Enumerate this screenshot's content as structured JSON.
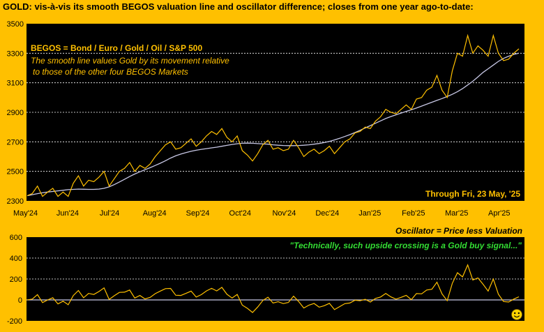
{
  "title": "GOLD:  vis-à-vis its smooth BEGOS valuation line and oscillator difference; closes from one year ago-to-date:",
  "legend": {
    "title": "BEGOS = Bond / Euro / Gold / Oil / S&P 500",
    "line1": "The smooth line values Gold by its movement relative",
    "line2": "to those of the other four BEGOS Markets"
  },
  "through_label": "Through Fri, 23 May, '25",
  "oscillator_label": "Oscillator = Price less Valuation",
  "quote": "\"Technically, such upside crossing is a Gold buy signal...\"",
  "colors": {
    "background": "#FFC000",
    "plot_background": "#000000",
    "price_line": "#FFC000",
    "valuation_line": "#C8C8E6",
    "gridline": "#FFFFFF",
    "quote_text": "#33DD33"
  },
  "icons": {
    "face": "smiley-face-icon"
  },
  "chart_data": [
    {
      "type": "line",
      "x_ticks": [
        "May'24",
        "Jun'24",
        "Jul'24",
        "Aug'24",
        "Sep'24",
        "Oct'24",
        "Nov'24",
        "Dec'24",
        "Jan'25",
        "Feb'25",
        "Mar'25",
        "Apr'25"
      ],
      "ylim": [
        2300,
        3500
      ],
      "y_ticks": [
        2300,
        2500,
        2700,
        2900,
        3100,
        3300,
        3500
      ],
      "grid": true,
      "legend_placement": "top-left",
      "series": [
        {
          "values": [
            2335,
            2350,
            2400,
            2330,
            2360,
            2385,
            2330,
            2360,
            2330,
            2420,
            2470,
            2400,
            2440,
            2430,
            2460,
            2500,
            2400,
            2450,
            2500,
            2520,
            2560,
            2500,
            2540,
            2520,
            2550,
            2600,
            2640,
            2680,
            2700,
            2650,
            2660,
            2690,
            2720,
            2670,
            2700,
            2740,
            2770,
            2750,
            2790,
            2730,
            2700,
            2740,
            2640,
            2610,
            2570,
            2620,
            2680,
            2710,
            2650,
            2660,
            2640,
            2650,
            2710,
            2660,
            2600,
            2630,
            2650,
            2620,
            2640,
            2670,
            2620,
            2660,
            2700,
            2720,
            2760,
            2770,
            2800,
            2790,
            2840,
            2870,
            2920,
            2900,
            2890,
            2920,
            2950,
            2920,
            2990,
            3000,
            3050,
            3070,
            3150,
            3050,
            3000,
            3180,
            3300,
            3280,
            3420,
            3300,
            3350,
            3320,
            3280,
            3420,
            3300,
            3250,
            3260,
            3300,
            3330
          ]
        },
        {
          "values": [
            2335,
            2342,
            2349,
            2355,
            2360,
            2364,
            2368,
            2372,
            2376,
            2378,
            2380,
            2379,
            2378,
            2378,
            2380,
            2385,
            2395,
            2410,
            2428,
            2446,
            2465,
            2482,
            2497,
            2511,
            2525,
            2540,
            2555,
            2572,
            2590,
            2605,
            2617,
            2627,
            2636,
            2643,
            2649,
            2654,
            2659,
            2664,
            2670,
            2676,
            2682,
            2687,
            2690,
            2691,
            2690,
            2688,
            2686,
            2684,
            2680,
            2677,
            2675,
            2674,
            2674,
            2675,
            2677,
            2680,
            2684,
            2689,
            2695,
            2703,
            2713,
            2724,
            2736,
            2749,
            2763,
            2778,
            2794,
            2810,
            2826,
            2842,
            2858,
            2871,
            2883,
            2895,
            2906,
            2917,
            2929,
            2942,
            2955,
            2968,
            2981,
            2993,
            3007,
            3022,
            3040,
            3060,
            3085,
            3110,
            3140,
            3170,
            3195,
            3220,
            3245,
            3265,
            3280,
            3292,
            3300
          ]
        }
      ]
    },
    {
      "type": "line",
      "ylim": [
        -200,
        600
      ],
      "y_ticks": [
        -200,
        0,
        200,
        400,
        600
      ],
      "grid": true,
      "series": [
        {
          "values": [
            0,
            8,
            51,
            -25,
            0,
            21,
            -38,
            -12,
            -46,
            42,
            90,
            21,
            62,
            52,
            80,
            115,
            5,
            40,
            72,
            74,
            95,
            18,
            43,
            9,
            25,
            60,
            85,
            108,
            110,
            45,
            43,
            63,
            84,
            27,
            51,
            86,
            111,
            86,
            120,
            54,
            18,
            53,
            -50,
            -81,
            -120,
            -68,
            -6,
            26,
            -30,
            -17,
            -35,
            -24,
            36,
            -15,
            -77,
            -50,
            -34,
            -69,
            -55,
            -33,
            -93,
            -64,
            -36,
            -29,
            -3,
            -8,
            6,
            -20,
            14,
            28,
            62,
            29,
            7,
            25,
            44,
            3,
            61,
            58,
            95,
            102,
            169,
            57,
            -7,
            158,
            260,
            220,
            335,
            190,
            210,
            150,
            85,
            200,
            55,
            -15,
            -20,
            8,
            30
          ]
        }
      ]
    }
  ]
}
